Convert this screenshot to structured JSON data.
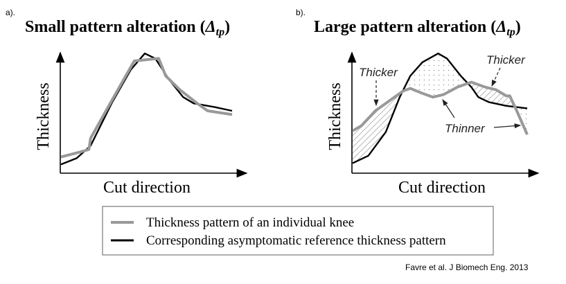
{
  "panels": [
    {
      "label": "a).",
      "title": "Small pattern alteration (",
      "delta": "Δ",
      "sub": "tp",
      "close": ")",
      "xlabel": "Cut direction",
      "ylabel": "Thickness"
    },
    {
      "label": "b).",
      "title": "Large pattern alteration (",
      "delta": "Δ",
      "sub": "tp",
      "close": ")",
      "xlabel": "Cut direction",
      "ylabel": "Thickness",
      "annotations": {
        "thicker_left": "Thicker",
        "thicker_right": "Thicker",
        "thinner": "Thinner"
      }
    }
  ],
  "legend": {
    "individual": "Thickness pattern of an individual knee",
    "reference": "Corresponding asymptomatic reference thickness pattern"
  },
  "citation": "Favre et al. J Biomech Eng. 2013",
  "colors": {
    "individual": "#999999",
    "reference": "#000000"
  },
  "chart_data": [
    {
      "type": "line",
      "title": "Small pattern alteration (Δtp)",
      "xlabel": "Cut direction",
      "ylabel": "Thickness",
      "xlim": [
        0,
        100
      ],
      "ylim": [
        0,
        100
      ],
      "series": [
        {
          "name": "Thickness pattern of an individual knee",
          "x": [
            0,
            11,
            16,
            17,
            29,
            42,
            56,
            60,
            68,
            78,
            84,
            98
          ],
          "y": [
            13,
            17,
            19,
            28,
            58,
            90,
            92,
            78,
            67,
            56,
            50,
            47
          ]
        },
        {
          "name": "Corresponding asymptomatic reference thickness pattern",
          "x": [
            0,
            9,
            17,
            29,
            40,
            48,
            54,
            62,
            70,
            76,
            88,
            98
          ],
          "y": [
            7,
            12,
            22,
            56,
            83,
            96,
            92,
            75,
            61,
            56,
            53,
            50
          ]
        }
      ]
    },
    {
      "type": "line",
      "title": "Large pattern alteration (Δtp)",
      "xlabel": "Cut direction",
      "ylabel": "Thickness",
      "xlim": [
        0,
        100
      ],
      "ylim": [
        0,
        100
      ],
      "series": [
        {
          "name": "Thickness pattern of an individual knee",
          "x": [
            0,
            5,
            13,
            21,
            29,
            33,
            40,
            46,
            52,
            60,
            68,
            76,
            82,
            88,
            90,
            94,
            100
          ],
          "y": [
            34,
            38,
            50,
            58,
            66,
            68,
            64,
            61,
            63,
            69,
            73,
            69,
            67,
            62,
            62,
            50,
            31
          ]
        },
        {
          "name": "Corresponding asymptomatic reference thickness pattern",
          "x": [
            0,
            9,
            19,
            27,
            33,
            40,
            49,
            54,
            62,
            68,
            72,
            78,
            88,
            100
          ],
          "y": [
            8,
            14,
            33,
            61,
            78,
            89,
            96,
            92,
            78,
            69,
            61,
            57,
            54,
            52
          ]
        }
      ]
    }
  ]
}
